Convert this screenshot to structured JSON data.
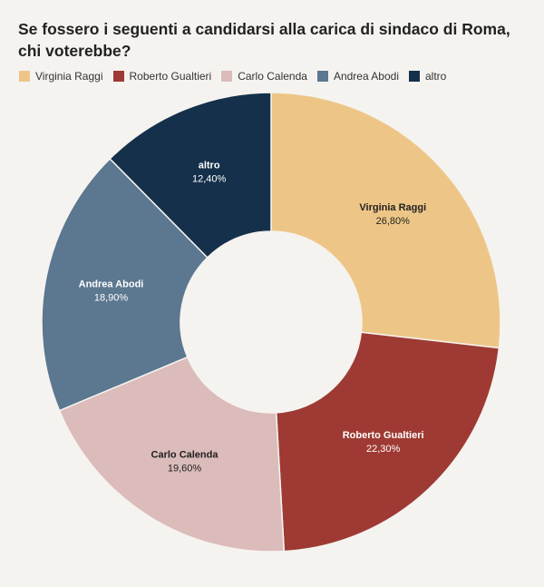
{
  "chart_data": {
    "type": "pie",
    "title": "Se fossero i seguenti a candidarsi alla carica di sindaco di Roma, chi voterebbe?",
    "legend_position": "top-left",
    "donut": true,
    "slices": [
      {
        "label": "Virginia Raggi",
        "value": 26.8,
        "display": "26,80%",
        "color": "#edc687",
        "label_color": "#1f1f1f"
      },
      {
        "label": "Roberto Gualtieri",
        "value": 22.3,
        "display": "22,30%",
        "color": "#9e3a33",
        "label_color": "#ffffff"
      },
      {
        "label": "Carlo Calenda",
        "value": 19.6,
        "display": "19,60%",
        "color": "#dbbcba",
        "label_color": "#1f1f1f"
      },
      {
        "label": "Andrea Abodi",
        "value": 18.9,
        "display": "18,90%",
        "color": "#5c7790",
        "label_color": "#ffffff"
      },
      {
        "label": "altro",
        "value": 12.4,
        "display": "12,40%",
        "color": "#15304a",
        "label_color": "#ffffff"
      }
    ]
  }
}
